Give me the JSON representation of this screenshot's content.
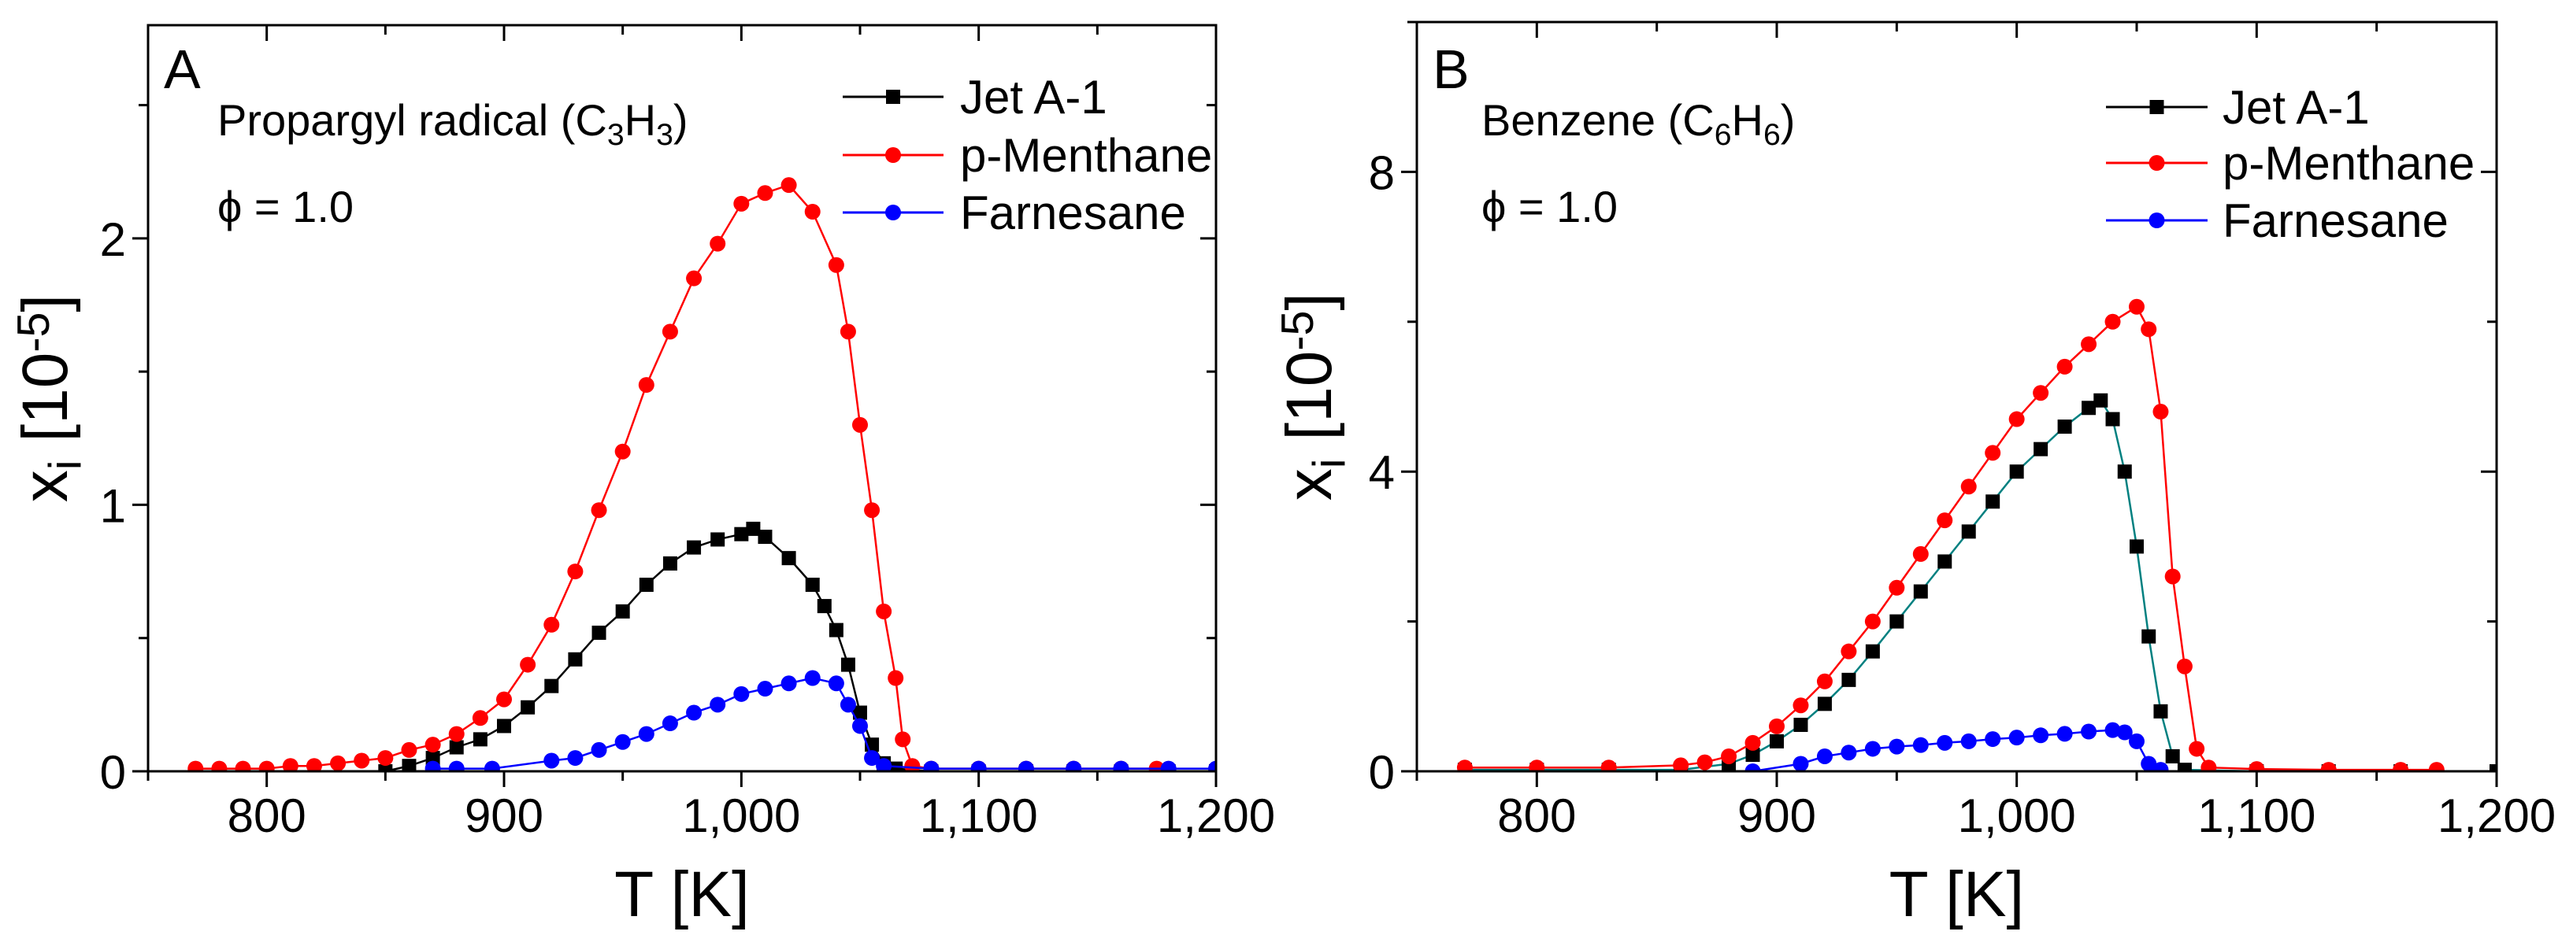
{
  "chart_data": [
    {
      "type": "line",
      "panel_label": "A",
      "annotation_parts": [
        "Propargyl radical (C",
        "3",
        "H",
        "3",
        ")"
      ],
      "condition": "ϕ = 1.0",
      "xlabel_parts": [
        "T [K]"
      ],
      "ylabel_parts": [
        "x",
        "i",
        " [10",
        "-5",
        "]"
      ],
      "xlim": [
        750,
        1200
      ],
      "ylim": [
        0,
        2.8
      ],
      "xticks": [
        800,
        900,
        1000,
        1100,
        1200
      ],
      "xtick_labels": [
        "800",
        "900",
        "1,000",
        "1,100",
        "1,200"
      ],
      "yticks": [
        0,
        1,
        2
      ],
      "ytick_labels": [
        "0",
        "1",
        "2"
      ],
      "x_minor_step": 50,
      "y_minor_step": 0.5,
      "legend_position": "top-right",
      "grid": false,
      "series": [
        {
          "name": "Jet A-1",
          "color": "#000000",
          "marker": "square",
          "points": [
            [
              850,
              0
            ],
            [
              860,
              0.02
            ],
            [
              870,
              0.05
            ],
            [
              880,
              0.09
            ],
            [
              890,
              0.12
            ],
            [
              900,
              0.17
            ],
            [
              910,
              0.24
            ],
            [
              920,
              0.32
            ],
            [
              930,
              0.42
            ],
            [
              940,
              0.52
            ],
            [
              950,
              0.6
            ],
            [
              960,
              0.7
            ],
            [
              970,
              0.78
            ],
            [
              980,
              0.84
            ],
            [
              990,
              0.87
            ],
            [
              1000,
              0.89
            ],
            [
              1005,
              0.91
            ],
            [
              1010,
              0.88
            ],
            [
              1020,
              0.8
            ],
            [
              1030,
              0.7
            ],
            [
              1035,
              0.62
            ],
            [
              1040,
              0.53
            ],
            [
              1045,
              0.4
            ],
            [
              1050,
              0.22
            ],
            [
              1055,
              0.1
            ],
            [
              1060,
              0.03
            ],
            [
              1065,
              0.01
            ],
            [
              1080,
              0
            ],
            [
              1100,
              0
            ],
            [
              1120,
              0
            ],
            [
              1140,
              0
            ],
            [
              1160,
              0
            ],
            [
              1180,
              0
            ],
            [
              1200,
              0
            ]
          ]
        },
        {
          "name": "p-Menthane",
          "color": "#ff0000",
          "marker": "circle",
          "points": [
            [
              770,
              0.01
            ],
            [
              780,
              0.01
            ],
            [
              790,
              0.01
            ],
            [
              800,
              0.01
            ],
            [
              810,
              0.02
            ],
            [
              820,
              0.02
            ],
            [
              830,
              0.03
            ],
            [
              840,
              0.04
            ],
            [
              850,
              0.05
            ],
            [
              860,
              0.08
            ],
            [
              870,
              0.1
            ],
            [
              880,
              0.14
            ],
            [
              890,
              0.2
            ],
            [
              900,
              0.27
            ],
            [
              910,
              0.4
            ],
            [
              920,
              0.55
            ],
            [
              930,
              0.75
            ],
            [
              940,
              0.98
            ],
            [
              950,
              1.2
            ],
            [
              960,
              1.45
            ],
            [
              970,
              1.65
            ],
            [
              980,
              1.85
            ],
            [
              990,
              1.98
            ],
            [
              1000,
              2.13
            ],
            [
              1010,
              2.17
            ],
            [
              1020,
              2.2
            ],
            [
              1030,
              2.1
            ],
            [
              1040,
              1.9
            ],
            [
              1045,
              1.65
            ],
            [
              1050,
              1.3
            ],
            [
              1055,
              0.98
            ],
            [
              1060,
              0.6
            ],
            [
              1065,
              0.35
            ],
            [
              1068,
              0.12
            ],
            [
              1072,
              0.02
            ],
            [
              1080,
              0.01
            ],
            [
              1100,
              0.01
            ],
            [
              1120,
              0.01
            ],
            [
              1140,
              0.01
            ],
            [
              1160,
              0.01
            ],
            [
              1175,
              0.01
            ]
          ]
        },
        {
          "name": "Farnesane",
          "color": "#0000ff",
          "marker": "circle",
          "points": [
            [
              870,
              0.01
            ],
            [
              880,
              0.01
            ],
            [
              895,
              0.01
            ],
            [
              920,
              0.04
            ],
            [
              930,
              0.05
            ],
            [
              940,
              0.08
            ],
            [
              950,
              0.11
            ],
            [
              960,
              0.14
            ],
            [
              970,
              0.18
            ],
            [
              980,
              0.22
            ],
            [
              990,
              0.25
            ],
            [
              1000,
              0.29
            ],
            [
              1010,
              0.31
            ],
            [
              1020,
              0.33
            ],
            [
              1030,
              0.35
            ],
            [
              1040,
              0.33
            ],
            [
              1045,
              0.25
            ],
            [
              1050,
              0.17
            ],
            [
              1055,
              0.05
            ],
            [
              1060,
              0.02
            ],
            [
              1080,
              0.01
            ],
            [
              1100,
              0.01
            ],
            [
              1120,
              0.01
            ],
            [
              1140,
              0.01
            ],
            [
              1160,
              0.01
            ],
            [
              1180,
              0.01
            ],
            [
              1200,
              0.01
            ]
          ]
        }
      ]
    },
    {
      "type": "line",
      "panel_label": "B",
      "annotation_parts": [
        "Benzene (C",
        "6",
        "H",
        "6",
        ")"
      ],
      "condition": "ϕ = 1.0",
      "xlabel_parts": [
        "T [K]"
      ],
      "ylabel_parts": [
        "x",
        "i",
        " [10",
        "-5",
        "]"
      ],
      "xlim": [
        750,
        1200
      ],
      "ylim": [
        0,
        10
      ],
      "xticks": [
        800,
        900,
        1000,
        1100,
        1200
      ],
      "xtick_labels": [
        "800",
        "900",
        "1,000",
        "1,100",
        "1,200"
      ],
      "yticks": [
        0,
        4,
        8
      ],
      "ytick_labels": [
        "0",
        "4",
        "8"
      ],
      "x_minor_step": 50,
      "y_minor_step": 2,
      "legend_position": "top-right",
      "grid": false,
      "series": [
        {
          "name": "Jet A-1",
          "color": "#000000",
          "line_color": "#008080",
          "marker": "square",
          "points": [
            [
              770,
              0.02
            ],
            [
              800,
              0.02
            ],
            [
              830,
              0.02
            ],
            [
              860,
              0.02
            ],
            [
              880,
              0.1
            ],
            [
              890,
              0.22
            ],
            [
              900,
              0.4
            ],
            [
              910,
              0.62
            ],
            [
              920,
              0.9
            ],
            [
              930,
              1.22
            ],
            [
              940,
              1.6
            ],
            [
              950,
              2.0
            ],
            [
              960,
              2.4
            ],
            [
              970,
              2.8
            ],
            [
              980,
              3.2
            ],
            [
              990,
              3.6
            ],
            [
              1000,
              4.0
            ],
            [
              1010,
              4.3
            ],
            [
              1020,
              4.6
            ],
            [
              1030,
              4.85
            ],
            [
              1035,
              4.95
            ],
            [
              1040,
              4.7
            ],
            [
              1045,
              4.0
            ],
            [
              1050,
              3.0
            ],
            [
              1055,
              1.8
            ],
            [
              1060,
              0.8
            ],
            [
              1065,
              0.2
            ],
            [
              1070,
              0.02
            ],
            [
              1100,
              0
            ],
            [
              1130,
              0
            ],
            [
              1160,
              0
            ],
            [
              1200,
              0
            ]
          ]
        },
        {
          "name": "p-Menthane",
          "color": "#ff0000",
          "marker": "circle",
          "points": [
            [
              770,
              0.05
            ],
            [
              800,
              0.05
            ],
            [
              830,
              0.05
            ],
            [
              860,
              0.08
            ],
            [
              870,
              0.12
            ],
            [
              880,
              0.2
            ],
            [
              890,
              0.38
            ],
            [
              900,
              0.6
            ],
            [
              910,
              0.88
            ],
            [
              920,
              1.2
            ],
            [
              930,
              1.6
            ],
            [
              940,
              2.0
            ],
            [
              950,
              2.45
            ],
            [
              960,
              2.9
            ],
            [
              970,
              3.35
            ],
            [
              980,
              3.8
            ],
            [
              990,
              4.25
            ],
            [
              1000,
              4.7
            ],
            [
              1010,
              5.05
            ],
            [
              1020,
              5.4
            ],
            [
              1030,
              5.7
            ],
            [
              1040,
              6.0
            ],
            [
              1050,
              6.2
            ],
            [
              1055,
              5.9
            ],
            [
              1060,
              4.8
            ],
            [
              1065,
              2.6
            ],
            [
              1070,
              1.4
            ],
            [
              1075,
              0.3
            ],
            [
              1080,
              0.05
            ],
            [
              1100,
              0.03
            ],
            [
              1130,
              0.02
            ],
            [
              1160,
              0.02
            ],
            [
              1175,
              0.02
            ]
          ]
        },
        {
          "name": "Farnesane",
          "color": "#0000ff",
          "marker": "circle",
          "points": [
            [
              890,
              0
            ],
            [
              910,
              0.1
            ],
            [
              920,
              0.2
            ],
            [
              930,
              0.25
            ],
            [
              940,
              0.3
            ],
            [
              950,
              0.33
            ],
            [
              960,
              0.35
            ],
            [
              970,
              0.38
            ],
            [
              980,
              0.4
            ],
            [
              990,
              0.43
            ],
            [
              1000,
              0.45
            ],
            [
              1010,
              0.48
            ],
            [
              1020,
              0.5
            ],
            [
              1030,
              0.53
            ],
            [
              1040,
              0.55
            ],
            [
              1045,
              0.52
            ],
            [
              1050,
              0.4
            ],
            [
              1055,
              0.1
            ],
            [
              1060,
              0.02
            ]
          ]
        }
      ]
    }
  ]
}
